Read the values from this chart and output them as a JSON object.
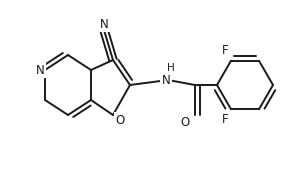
{
  "background": "#ffffff",
  "line_color": "#1a1a1a",
  "line_width": 1.4,
  "font_size": 8.5,
  "figsize": [
    3.04,
    1.88
  ],
  "dpi": 100,
  "xlim": [
    0,
    304
  ],
  "ylim": [
    0,
    188
  ]
}
